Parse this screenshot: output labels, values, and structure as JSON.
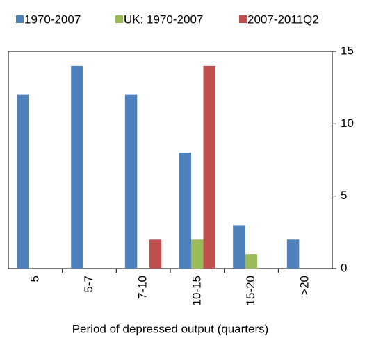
{
  "chart_data": {
    "type": "bar",
    "x_label": "Period of depressed output (quarters)",
    "categories": [
      "5",
      "5-7",
      "7-10",
      "10-15",
      "15-20",
      ">20"
    ],
    "series": [
      {
        "name": "1970-2007",
        "color": "#4f81bd",
        "values": [
          12,
          14,
          12,
          8,
          3,
          2
        ]
      },
      {
        "name": "UK: 1970-2007",
        "color": "#9bbb59",
        "values": [
          0,
          0,
          0,
          2,
          1,
          0
        ]
      },
      {
        "name": "2007-2011Q2",
        "color": "#c0504d",
        "values": [
          0,
          0,
          2,
          14,
          0,
          0
        ]
      }
    ],
    "ylim": [
      0,
      15
    ],
    "yticks": [
      0,
      5,
      10,
      15
    ],
    "y_axis_side": "right",
    "legend": "top"
  }
}
